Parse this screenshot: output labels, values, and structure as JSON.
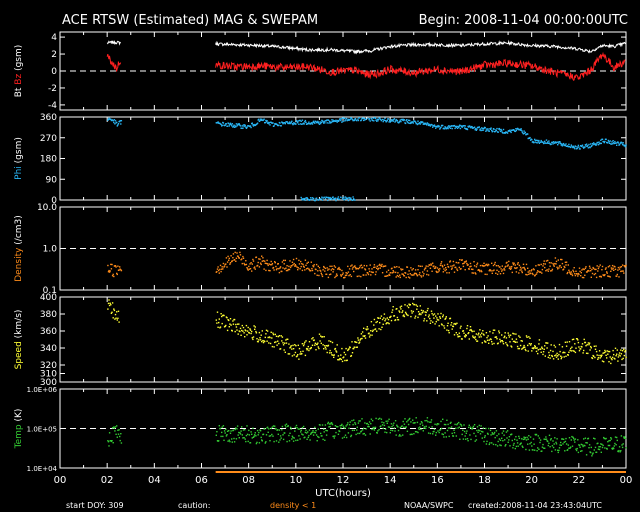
{
  "header": {
    "title": "ACE RTSW (Estimated) MAG & SWEPAM",
    "begin": "Begin: 2008-11-04 00:00:00UTC"
  },
  "footer": {
    "start_doy": "start DOY: 309",
    "caution": "caution:",
    "density_note": "density < 1",
    "source": "NOAA/SWPC",
    "created": "created:2008-11-04 23:43:04UTC"
  },
  "colors": {
    "bt": "#ffffff",
    "bz": "#ff2020",
    "phi": "#29b6f6",
    "density": "#ff8c1a",
    "speed": "#ffff33",
    "temp": "#33cc33",
    "frame": "#ffffff"
  },
  "chart_data": {
    "type": "scatter",
    "xlabel": "UTC(hours)",
    "xlim": [
      0,
      24
    ],
    "xticks": [
      "00",
      "02",
      "04",
      "06",
      "08",
      "10",
      "12",
      "14",
      "16",
      "18",
      "20",
      "22",
      "00"
    ],
    "gaps": [
      [
        2.6,
        6.6
      ]
    ],
    "panels": [
      {
        "id": "mag",
        "ylabel_parts": [
          {
            "text": "Bt",
            "color": "#ffffff"
          },
          {
            "text": "Bz",
            "color": "#ff2020"
          },
          {
            "text": "(gsm)",
            "color": "#ffffff"
          }
        ],
        "ylim": [
          -4.6,
          4.6
        ],
        "scale": "linear",
        "ticks": [
          {
            "v": 4,
            "l": "4"
          },
          {
            "v": 2,
            "l": "2"
          },
          {
            "v": 0,
            "l": "0"
          },
          {
            "v": -2,
            "l": "-2"
          },
          {
            "v": -4,
            "l": "-4"
          }
        ],
        "dashed": [
          0
        ],
        "series": [
          {
            "name": "Bt",
            "color": "#ffffff",
            "style": "line",
            "points": [
              [
                2.0,
                3.3
              ],
              [
                2.3,
                3.4
              ],
              [
                2.6,
                3.3
              ],
              [
                6.6,
                3.2
              ],
              [
                7.5,
                3.1
              ],
              [
                8.5,
                3.0
              ],
              [
                9.5,
                2.8
              ],
              [
                10.5,
                2.5
              ],
              [
                11.5,
                2.5
              ],
              [
                12.5,
                2.3
              ],
              [
                13.2,
                2.4
              ],
              [
                14.0,
                2.9
              ],
              [
                15.0,
                3.1
              ],
              [
                16.0,
                3.1
              ],
              [
                17.0,
                3.0
              ],
              [
                18.0,
                3.2
              ],
              [
                19.0,
                3.3
              ],
              [
                20.0,
                3.0
              ],
              [
                21.0,
                2.9
              ],
              [
                22.0,
                2.6
              ],
              [
                22.5,
                2.3
              ],
              [
                23.0,
                3.0
              ],
              [
                23.5,
                2.9
              ],
              [
                24.0,
                3.3
              ]
            ]
          },
          {
            "name": "Bz",
            "color": "#ff2020",
            "style": "line",
            "points": [
              [
                2.0,
                1.8
              ],
              [
                2.2,
                1.0
              ],
              [
                2.4,
                0.3
              ],
              [
                2.6,
                1.5
              ],
              [
                6.6,
                0.7
              ],
              [
                7.5,
                0.5
              ],
              [
                8.5,
                0.6
              ],
              [
                9.5,
                0.4
              ],
              [
                10.5,
                0.5
              ],
              [
                11.5,
                -0.1
              ],
              [
                12.5,
                0.1
              ],
              [
                13.0,
                -0.4
              ],
              [
                13.5,
                -0.3
              ],
              [
                14.0,
                0.2
              ],
              [
                15.0,
                -0.2
              ],
              [
                16.0,
                0.2
              ],
              [
                17.0,
                -0.1
              ],
              [
                18.0,
                0.7
              ],
              [
                19.0,
                0.9
              ],
              [
                20.0,
                0.6
              ],
              [
                21.0,
                -0.2
              ],
              [
                22.0,
                -0.8
              ],
              [
                22.5,
                0.1
              ],
              [
                23.0,
                2.0
              ],
              [
                23.5,
                0.4
              ],
              [
                24.0,
                1.2
              ]
            ]
          }
        ]
      },
      {
        "id": "phi",
        "ylabel_parts": [
          {
            "text": "Phi",
            "color": "#29b6f6"
          },
          {
            "text": "(gsm)",
            "color": "#ffffff"
          }
        ],
        "ylim": [
          0,
          360
        ],
        "scale": "linear",
        "ticks": [
          {
            "v": 360,
            "l": "360"
          },
          {
            "v": 270,
            "l": "270"
          },
          {
            "v": 180,
            "l": "180"
          },
          {
            "v": 90,
            "l": "90"
          },
          {
            "v": 0,
            "l": "0"
          }
        ],
        "dashed": [],
        "series": [
          {
            "name": "Phi",
            "color": "#29b6f6",
            "style": "dots",
            "points": [
              [
                2.0,
                355
              ],
              [
                2.2,
                350
              ],
              [
                2.4,
                330
              ],
              [
                2.6,
                345
              ],
              [
                6.6,
                335
              ],
              [
                7.0,
                330
              ],
              [
                8.0,
                320
              ],
              [
                8.5,
                350
              ],
              [
                9.0,
                330
              ],
              [
                10.0,
                340
              ],
              [
                11.0,
                340
              ],
              [
                12.0,
                350
              ],
              [
                13.0,
                355
              ],
              [
                14.0,
                350
              ],
              [
                15.0,
                340
              ],
              [
                16.0,
                320
              ],
              [
                17.0,
                320
              ],
              [
                18.0,
                310
              ],
              [
                19.0,
                300
              ],
              [
                19.5,
                310
              ],
              [
                20.0,
                260
              ],
              [
                21.0,
                250
              ],
              [
                22.0,
                230
              ],
              [
                22.5,
                240
              ],
              [
                23.0,
                260
              ],
              [
                23.5,
                250
              ],
              [
                24.0,
                240
              ],
              [
                10.2,
                5
              ],
              [
                12.5,
                8
              ]
            ]
          }
        ]
      },
      {
        "id": "density",
        "ylabel_parts": [
          {
            "text": "Density",
            "color": "#ff8c1a"
          },
          {
            "text": "(/cm3)",
            "color": "#ffffff"
          }
        ],
        "ylim": [
          0.1,
          10.0
        ],
        "scale": "log",
        "ticks": [
          {
            "v": 10,
            "l": "10.0"
          },
          {
            "v": 1,
            "l": "1.0"
          },
          {
            "v": 0.1,
            "l": "0.1"
          }
        ],
        "dashed": [
          1.0
        ],
        "series": [
          {
            "name": "Density",
            "color": "#ff8c1a",
            "style": "dots",
            "points": [
              [
                2.0,
                0.35
              ],
              [
                2.3,
                0.3
              ],
              [
                2.6,
                0.4
              ],
              [
                6.6,
                0.33
              ],
              [
                7.0,
                0.45
              ],
              [
                7.5,
                0.7
              ],
              [
                8.0,
                0.4
              ],
              [
                8.5,
                0.5
              ],
              [
                9.0,
                0.35
              ],
              [
                10.0,
                0.45
              ],
              [
                11.0,
                0.3
              ],
              [
                12.0,
                0.28
              ],
              [
                13.0,
                0.32
              ],
              [
                14.0,
                0.3
              ],
              [
                15.0,
                0.28
              ],
              [
                16.0,
                0.35
              ],
              [
                17.0,
                0.4
              ],
              [
                18.0,
                0.32
              ],
              [
                19.0,
                0.38
              ],
              [
                20.0,
                0.3
              ],
              [
                21.0,
                0.45
              ],
              [
                22.0,
                0.28
              ],
              [
                23.0,
                0.3
              ],
              [
                24.0,
                0.3
              ]
            ]
          }
        ]
      },
      {
        "id": "speed",
        "ylabel_parts": [
          {
            "text": "Speed",
            "color": "#ffff33"
          },
          {
            "text": "(km/s)",
            "color": "#ffffff"
          }
        ],
        "ylim": [
          300,
          400
        ],
        "scale": "linear",
        "ticks": [
          {
            "v": 400,
            "l": "400"
          },
          {
            "v": 380,
            "l": "380"
          },
          {
            "v": 360,
            "l": "360"
          },
          {
            "v": 340,
            "l": "340"
          },
          {
            "v": 320,
            "l": "320"
          },
          {
            "v": 310,
            "l": "310"
          },
          {
            "v": 300,
            "l": "300"
          }
        ],
        "dashed": [],
        "series": [
          {
            "name": "Speed",
            "color": "#ffff33",
            "style": "dots",
            "points": [
              [
                2.0,
                390
              ],
              [
                2.2,
                385
              ],
              [
                2.5,
                375
              ],
              [
                6.6,
                375
              ],
              [
                7.5,
                365
              ],
              [
                8.5,
                355
              ],
              [
                9.5,
                345
              ],
              [
                10.0,
                335
              ],
              [
                11.0,
                350
              ],
              [
                12.0,
                330
              ],
              [
                13.0,
                360
              ],
              [
                14.0,
                380
              ],
              [
                15.0,
                385
              ],
              [
                16.0,
                375
              ],
              [
                17.0,
                360
              ],
              [
                18.0,
                355
              ],
              [
                19.0,
                350
              ],
              [
                20.0,
                345
              ],
              [
                21.0,
                335
              ],
              [
                22.0,
                345
              ],
              [
                23.0,
                330
              ],
              [
                24.0,
                335
              ]
            ]
          }
        ]
      },
      {
        "id": "temp",
        "ylabel_parts": [
          {
            "text": "Temp",
            "color": "#33cc33"
          },
          {
            "text": "(K)",
            "color": "#ffffff"
          }
        ],
        "ylim": [
          10000,
          1000000
        ],
        "scale": "log",
        "ticks": [
          {
            "v": 1000000,
            "l": "1.0E+06"
          },
          {
            "v": 100000,
            "l": "1.0E+05"
          },
          {
            "v": 10000,
            "l": "1.0E+04"
          }
        ],
        "dashed": [
          100000
        ],
        "series": [
          {
            "name": "Temp",
            "color": "#33cc33",
            "style": "dots",
            "points": [
              [
                2.0,
                60000
              ],
              [
                2.3,
                80000
              ],
              [
                2.6,
                70000
              ],
              [
                6.6,
                80000
              ],
              [
                7.5,
                75000
              ],
              [
                8.5,
                70000
              ],
              [
                9.5,
                80000
              ],
              [
                10.5,
                80000
              ],
              [
                11.5,
                90000
              ],
              [
                12.5,
                110000
              ],
              [
                13.5,
                130000
              ],
              [
                14.5,
                110000
              ],
              [
                15.5,
                130000
              ],
              [
                16.5,
                100000
              ],
              [
                17.5,
                80000
              ],
              [
                18.5,
                60000
              ],
              [
                19.5,
                50000
              ],
              [
                20.5,
                45000
              ],
              [
                21.5,
                40000
              ],
              [
                22.5,
                35000
              ],
              [
                23.5,
                40000
              ],
              [
                24.0,
                45000
              ]
            ]
          }
        ]
      }
    ]
  }
}
